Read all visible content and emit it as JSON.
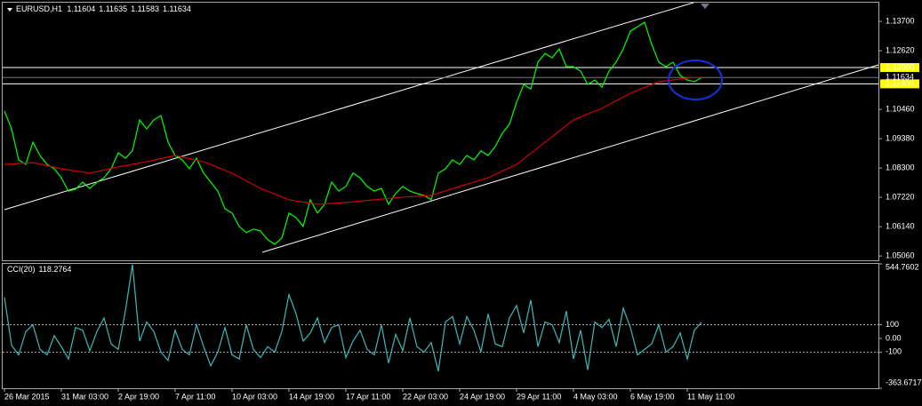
{
  "chart_data": {
    "type": "line",
    "symbol": "EURUSD,H1",
    "ohlc": [
      1.11604,
      1.11635,
      1.11583,
      1.11634
    ],
    "series": [
      {
        "name": "EURUSD",
        "color": "#00ff00",
        "values": [
          1.104,
          1.0974,
          1.086,
          1.0843,
          1.0925,
          1.0876,
          1.0843,
          1.0827,
          1.0794,
          1.0745,
          1.0752,
          1.0778,
          1.0755,
          1.0778,
          1.0794,
          1.0827,
          1.0886,
          1.0866,
          1.0893,
          1.1007,
          1.0974,
          1.1007,
          1.1023,
          1.0925,
          1.0876,
          1.086,
          1.0827,
          1.0866,
          1.0811,
          1.0778,
          1.0745,
          1.068,
          1.0664,
          1.0615,
          1.0592,
          1.0605,
          1.0598,
          1.0566,
          1.0549,
          1.0572,
          1.0664,
          1.0647,
          1.0615,
          1.0713,
          1.0664,
          1.0696,
          1.0778,
          1.0745,
          1.0762,
          1.0811,
          1.0794,
          1.0762,
          1.0745,
          1.0755,
          1.0696,
          1.0736,
          1.0762,
          1.0745,
          1.0736,
          1.0729,
          1.0713,
          1.0811,
          1.0827,
          1.086,
          1.0843,
          1.0876,
          1.086,
          1.0893,
          1.0876,
          1.0909,
          1.0958,
          1.0991,
          1.1072,
          1.1138,
          1.1121,
          1.122,
          1.1252,
          1.1236,
          1.1269,
          1.1203,
          1.1203,
          1.1187,
          1.1138,
          1.1154,
          1.1128,
          1.1187,
          1.122,
          1.1269,
          1.1334,
          1.135,
          1.1367,
          1.1285,
          1.122,
          1.1203,
          1.122,
          1.1171,
          1.1154,
          1.1148,
          1.1163
        ]
      },
      {
        "color": "#d00000",
        "x": [
          0,
          4,
          8,
          12,
          16,
          20,
          24,
          28,
          32,
          36,
          40,
          44,
          48,
          52,
          56,
          60,
          64,
          68,
          72,
          76,
          80,
          84,
          88,
          92,
          96,
          98
        ],
        "values": [
          1.0843,
          1.085,
          1.0827,
          1.0811,
          1.0834,
          1.0853,
          1.0876,
          1.0853,
          1.0811,
          1.0755,
          1.0713,
          1.0696,
          1.0703,
          1.0713,
          1.0723,
          1.0729,
          1.0762,
          1.0794,
          1.0843,
          1.0925,
          1.1007,
          1.105,
          1.1105,
          1.1148,
          1.1161,
          1.1164
        ]
      }
    ],
    "ylim": [
      1.049,
      1.1439
    ],
    "yticks": [
      {
        "value": 1.137,
        "label": "1.13700"
      },
      {
        "value": 1.1262,
        "label": "1.12620"
      },
      {
        "value": 1.1046,
        "label": "1.10460"
      },
      {
        "value": 1.0938,
        "label": "1.09380"
      },
      {
        "value": 1.083,
        "label": "1.08300"
      },
      {
        "value": 1.0722,
        "label": "1.07220"
      },
      {
        "value": 1.0614,
        "label": "1.06140"
      },
      {
        "value": 1.0506,
        "label": "1.05060"
      }
    ],
    "levels": [
      {
        "value": 1.12,
        "label": "1.12000"
      },
      {
        "value": 1.114,
        "label": "1.11400"
      }
    ],
    "current": {
      "value": 1.11634,
      "label": "1.11634"
    },
    "xticks": [
      {
        "value": 0,
        "label": "26 Mar 2015"
      },
      {
        "value": 8,
        "label": "31 Mar 03:00"
      },
      {
        "value": 16,
        "label": "2 Apr 19:00"
      },
      {
        "value": 24,
        "label": "7 Apr 11:00"
      },
      {
        "value": 32,
        "label": "10 Apr 03:00"
      },
      {
        "value": 40,
        "label": "14 Apr 19:00"
      },
      {
        "value": 48,
        "label": "17 Apr 11:00"
      },
      {
        "value": 56,
        "label": "22 Apr 03:00"
      },
      {
        "value": 64,
        "label": "24 Apr 19:00"
      },
      {
        "value": 72,
        "label": "29 Apr 11:00"
      },
      {
        "value": 80,
        "label": "4 May 03:00"
      },
      {
        "value": 88,
        "label": "6 May 19:00"
      },
      {
        "value": 96,
        "label": "11 May 11:00"
      }
    ],
    "indicator": {
      "name": "CCI(20)",
      "last": 118.2764,
      "color": "#3fb8b8",
      "values": [
        300,
        -50,
        -120,
        50,
        100,
        -80,
        -120,
        20,
        -60,
        -150,
        80,
        60,
        -90,
        50,
        150,
        -40,
        -80,
        200,
        540,
        -20,
        120,
        50,
        -100,
        -160,
        60,
        -80,
        -120,
        100,
        -60,
        -200,
        -100,
        80,
        -120,
        -150,
        100,
        -80,
        -140,
        -60,
        -100,
        50,
        320,
        180,
        -20,
        40,
        150,
        -30,
        80,
        100,
        -140,
        -20,
        60,
        -80,
        -120,
        100,
        -180,
        30,
        -90,
        150,
        -60,
        -100,
        -30,
        -240,
        120,
        160,
        -40,
        160,
        60,
        -100,
        180,
        -40,
        -60,
        150,
        240,
        40,
        280,
        -60,
        120,
        100,
        -30,
        200,
        -150,
        60,
        -230,
        120,
        80,
        140,
        -60,
        220,
        80,
        -120,
        -80,
        -40,
        100,
        -100,
        -60,
        40,
        -150,
        60,
        118.2764
      ],
      "ylim": [
        -363.6717,
        544.7602
      ],
      "yticks": [
        544.7602,
        100,
        {
          "value": 0,
          "label": "0.00"
        },
        -100,
        -363.6717
      ],
      "levels": [
        100,
        -100
      ]
    }
  }
}
